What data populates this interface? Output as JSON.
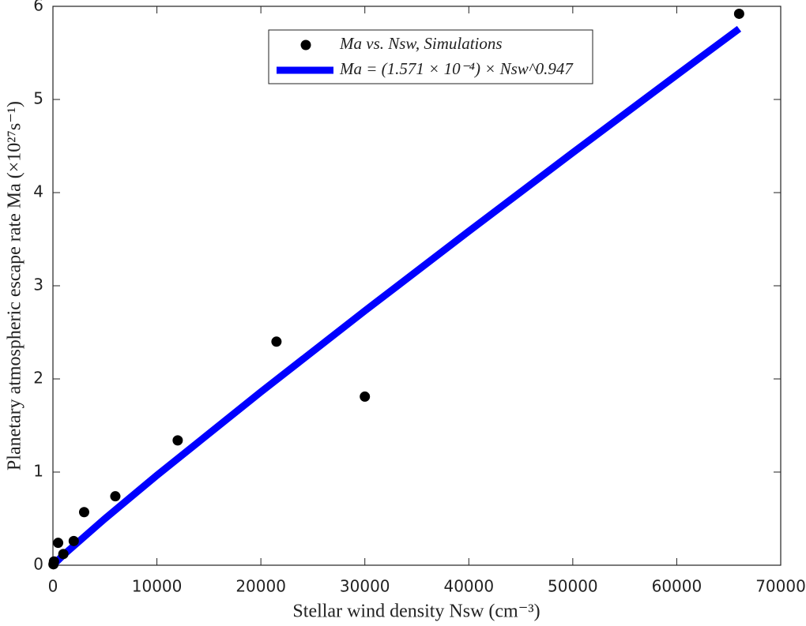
{
  "chart_data": {
    "type": "scatter",
    "xlabel": "Stellar wind density Nsw (cm⁻³)",
    "ylabel": "Planetary atmospheric escape rate Ma (×10²⁷s⁻¹)",
    "xlim": [
      0,
      70000
    ],
    "ylim": [
      0,
      6
    ],
    "xticks": [
      0,
      10000,
      20000,
      30000,
      40000,
      50000,
      60000,
      70000
    ],
    "yticks": [
      0,
      1,
      2,
      3,
      4,
      5,
      6
    ],
    "legend": "top",
    "series": [
      {
        "name": "Ma vs. Nsw, Simulations",
        "color": "#000000",
        "kind": "scatter",
        "x": [
          50,
          100,
          500,
          1000,
          2000,
          3000,
          6000,
          12000,
          21500,
          30000,
          66000
        ],
        "values": [
          0.01,
          0.04,
          0.24,
          0.12,
          0.26,
          0.57,
          0.74,
          1.34,
          2.4,
          1.81,
          5.92
        ]
      },
      {
        "name": "Ma = (1.571 × 10⁻⁴) × Nsw^0.947",
        "color": "#0000ff",
        "kind": "line",
        "x": [
          0,
          1000,
          5000,
          10000,
          20000,
          30000,
          40000,
          50000,
          60000,
          66000
        ],
        "values": [
          0,
          0.109,
          0.5,
          0.965,
          1.86,
          2.731,
          3.585,
          4.429,
          5.263,
          5.759
        ]
      }
    ]
  }
}
